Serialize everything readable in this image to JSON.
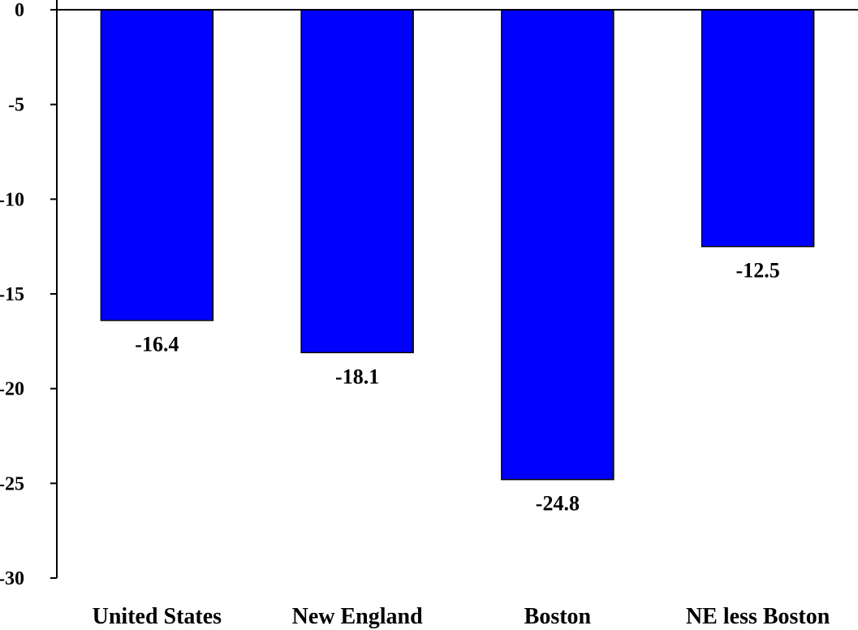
{
  "chart_data": {
    "type": "bar",
    "title": "",
    "xlabel": "",
    "ylabel": "",
    "categories": [
      "United States",
      "New England",
      "Boston",
      "NE less Boston"
    ],
    "values": [
      -16.4,
      -18.1,
      -24.8,
      -12.5
    ],
    "value_labels": [
      "-16.4",
      "-18.1",
      "-24.8",
      "-12.5"
    ],
    "ylim": [
      -30,
      0
    ],
    "yticks": [
      0,
      -5,
      -10,
      -15,
      -20,
      -25,
      -30
    ],
    "ytick_labels": [
      "0",
      "-5",
      "-10",
      "-15",
      "-20",
      "-25",
      "-30"
    ],
    "grid": false,
    "legend": "none",
    "bar_color": "#0000FF",
    "bar_edge_color": "#000000"
  }
}
